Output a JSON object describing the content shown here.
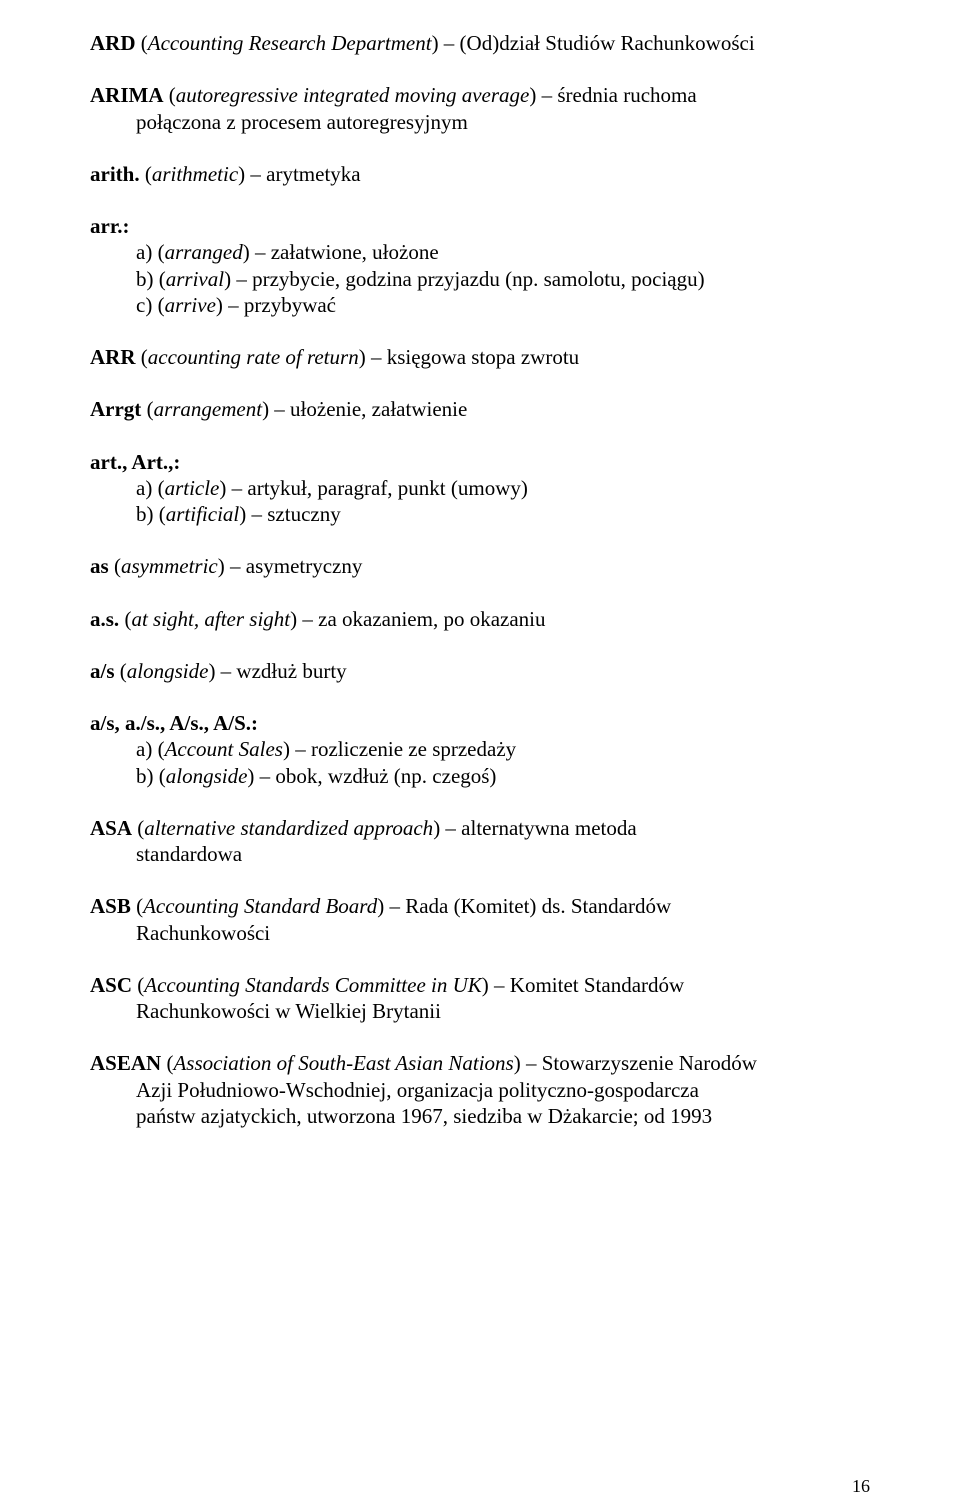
{
  "entries": {
    "ard": {
      "head_bold": "ARD",
      "head_rest": " (",
      "head_italic": "Accounting Research Department",
      "head_after": ") – (Od)dział Studiów Rachunkowości"
    },
    "arima": {
      "head_bold": "ARIMA",
      "head_rest": " (",
      "head_italic": "autoregressive integrated moving average",
      "head_after": ") – średnia ruchoma",
      "cont": "połączona z procesem autoregresyjnym"
    },
    "arith": {
      "head_bold": "arith.",
      "head_rest": " (",
      "head_italic": "arithmetic",
      "head_after": ") – arytmetyka"
    },
    "arr": {
      "head_bold": "arr.:",
      "a_pre": "a) (",
      "a_it": "arranged",
      "a_post": ") – załatwione, ułożone",
      "b_pre": "b) (",
      "b_it": "arrival",
      "b_post": ") – przybycie, godzina przyjazdu (np. samolotu, pociągu)",
      "c_pre": "c) (",
      "c_it": "arrive",
      "c_post": ") – przybywać"
    },
    "ARR": {
      "head_bold": "ARR",
      "head_rest": " (",
      "head_italic": "accounting rate of return",
      "head_after": ") – księgowa stopa zwrotu"
    },
    "arrgt": {
      "head_bold": "Arrgt",
      "head_rest": " (",
      "head_italic": "arrangement",
      "head_after": ") – ułożenie, załatwienie"
    },
    "art": {
      "head_bold": "art., Art.,:",
      "a_pre": "a) (",
      "a_it": "article",
      "a_post": ") – artykuł, paragraf, punkt (umowy)",
      "b_pre": "b) (",
      "b_it": "artificial",
      "b_post": ") – sztuczny"
    },
    "as": {
      "head_bold": "as",
      "head_rest": " (",
      "head_italic": "asymmetric",
      "head_after": ") – asymetryczny"
    },
    "as_dot": {
      "head_bold": "a.s.",
      "head_rest": " (",
      "head_italic": "at sight, after sight",
      "head_after": ") – za okazaniem, po okazaniu"
    },
    "a_slash_s": {
      "head_bold": "a/s",
      "head_rest": " (",
      "head_italic": "alongside",
      "head_after": ") – wzdłuż burty"
    },
    "a_slash_s_list": {
      "head_bold": "a/s, a./s., A/s., A/S.:",
      "a_pre": "a) (",
      "a_it": "Account Sales",
      "a_post": ") – rozliczenie ze sprzedaży",
      "b_pre": "b) (",
      "b_it": "alongside",
      "b_post": ") – obok, wzdłuż (np. czegoś)"
    },
    "asa": {
      "head_bold": "ASA",
      "head_rest": " (",
      "head_italic": "alternative standardized approach",
      "head_after": ") – alternatywna metoda",
      "cont": "standardowa"
    },
    "asb": {
      "head_bold": "ASB",
      "head_rest": " (",
      "head_italic": "Accounting Standard Board",
      "head_after": ") – Rada (Komitet) ds. Standardów",
      "cont": "Rachunkowości"
    },
    "asc": {
      "head_bold": "ASC",
      "head_rest": " (",
      "head_italic": "Accounting Standards Committee in UK",
      "head_after": ") – Komitet Standardów",
      "cont": "Rachunkowości w Wielkiej Brytanii"
    },
    "asean": {
      "head_bold": "ASEAN",
      "head_rest": " (",
      "head_italic": "Association of South-East Asian Nations",
      "head_after": ") – Stowarzyszenie Narodów",
      "cont1": "Azji Południowo-Wschodniej, organizacja polityczno-gospodarcza",
      "cont2": "państw azjatyckich, utworzona 1967, siedziba w Dżakarcie; od 1993"
    }
  },
  "pagenum": "16"
}
